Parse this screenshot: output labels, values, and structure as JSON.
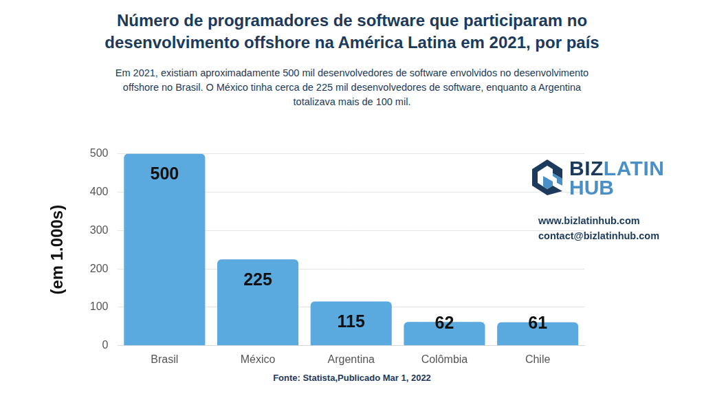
{
  "chart_data": {
    "type": "bar",
    "title": [
      "Número de programadores de software que participaram no",
      "desenvolvimento offshore na América Latina em 2021, por país"
    ],
    "subtitle": "Em 2021, existiam aproximadamente 500 mil desenvolvedores de software envolvidos no desenvolvimento offshore no Brasil. O México tinha cerca de 225 mil desenvolvedores de software, enquanto a Argentina totalizava mais de 100 mil.",
    "y_label": "(em 1.000s)",
    "categories": [
      "Brasil",
      "México",
      "Argentina",
      "Colômbia",
      "Chile"
    ],
    "values": [
      500,
      225,
      115,
      62,
      61
    ],
    "color": "#5aa9df",
    "ylim": [
      0,
      500
    ],
    "yticks": [
      0,
      100,
      200,
      300,
      400,
      500
    ],
    "grid": true,
    "data_labels": true,
    "logo": [
      "BIZ",
      "LATIN",
      "HUB"
    ],
    "annotations": [
      "www.bizlatinhub.com",
      "contact@bizlatinhub.com"
    ],
    "source": "Fonte: Statista,Publicado Mar 1, 2022"
  }
}
